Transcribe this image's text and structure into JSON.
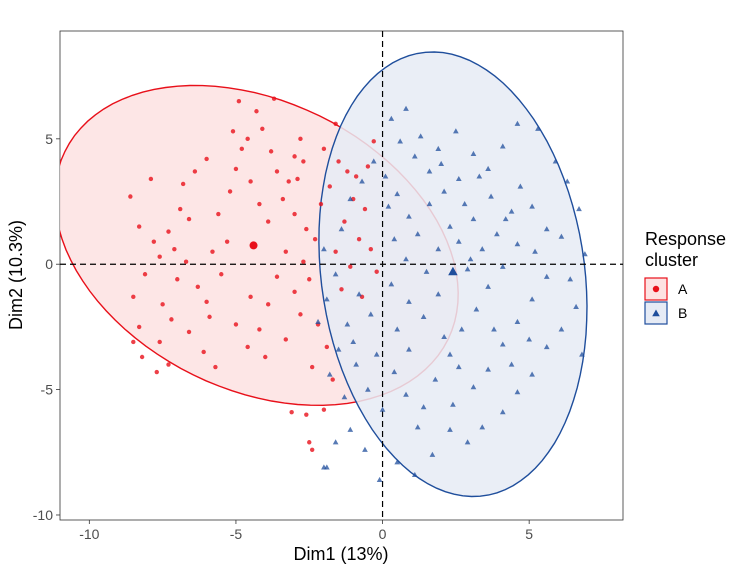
{
  "chart_data": {
    "type": "scatter",
    "xlabel": "Dim1 (13%)",
    "ylabel": "Dim2 (10.3%)",
    "xlim": [
      -11,
      8.2
    ],
    "ylim": [
      -10.2,
      9.3
    ],
    "xticks": [
      -10,
      -5,
      0,
      5
    ],
    "yticks": [
      -10,
      -5,
      0,
      5
    ],
    "xtick_labels": [
      "-10",
      "-5",
      "0",
      "5"
    ],
    "ytick_labels": [
      "-10",
      "-5",
      "0",
      "5"
    ],
    "reference_lines": {
      "x": 0,
      "y": 0,
      "style": "dashed"
    },
    "grid": false,
    "legend": {
      "title_lines": [
        "Response",
        "cluster"
      ],
      "position": "right"
    },
    "series": [
      {
        "name": "A",
        "marker": "circle",
        "color": "#E8101A",
        "fill": "#FDE2E2",
        "centroid": [
          -4.4,
          0.75
        ],
        "ellipse": {
          "center": [
            -4.3,
            0.75
          ],
          "rx": 5.5,
          "ry": 7.6,
          "rotation_deg": 52
        },
        "points": [
          [
            -8.6,
            2.7
          ],
          [
            -7.9,
            3.4
          ],
          [
            -8.3,
            1.5
          ],
          [
            -7.6,
            0.3
          ],
          [
            -8.1,
            -0.4
          ],
          [
            -8.5,
            -1.3
          ],
          [
            -8.3,
            -2.5
          ],
          [
            -8.5,
            -3.1
          ],
          [
            -8.2,
            -3.7
          ],
          [
            -7.7,
            -4.3
          ],
          [
            -7.3,
            -4.0
          ],
          [
            -7.6,
            -3.1
          ],
          [
            -7.2,
            -2.2
          ],
          [
            -7.5,
            -1.6
          ],
          [
            -7.0,
            -0.6
          ],
          [
            -7.1,
            0.6
          ],
          [
            -7.3,
            1.3
          ],
          [
            -6.9,
            2.2
          ],
          [
            -6.8,
            3.2
          ],
          [
            -6.6,
            1.8
          ],
          [
            -6.7,
            0.1
          ],
          [
            -6.3,
            -0.9
          ],
          [
            -6.6,
            -2.7
          ],
          [
            -6.1,
            -3.5
          ],
          [
            -5.7,
            -4.1
          ],
          [
            -5.9,
            -2.1
          ],
          [
            -5.5,
            -0.4
          ],
          [
            -5.3,
            0.9
          ],
          [
            -5.6,
            2.0
          ],
          [
            -5.2,
            2.9
          ],
          [
            -5.0,
            3.8
          ],
          [
            -4.8,
            4.6
          ],
          [
            -5.1,
            5.3
          ],
          [
            -4.6,
            5.0
          ],
          [
            -4.9,
            6.5
          ],
          [
            -4.3,
            6.1
          ],
          [
            -3.7,
            6.6
          ],
          [
            -4.1,
            5.4
          ],
          [
            -3.8,
            4.5
          ],
          [
            -3.6,
            3.7
          ],
          [
            -4.5,
            3.3
          ],
          [
            -4.2,
            2.4
          ],
          [
            -3.9,
            1.7
          ],
          [
            -3.4,
            2.6
          ],
          [
            -3.2,
            3.3
          ],
          [
            -3.0,
            4.3
          ],
          [
            -2.8,
            5.0
          ],
          [
            -2.7,
            4.1
          ],
          [
            -2.9,
            3.4
          ],
          [
            -3.0,
            2.0
          ],
          [
            -2.6,
            1.4
          ],
          [
            -3.3,
            0.5
          ],
          [
            -3.6,
            -0.5
          ],
          [
            -3.9,
            -1.6
          ],
          [
            -4.2,
            -2.6
          ],
          [
            -4.6,
            -3.3
          ],
          [
            -4.0,
            -3.7
          ],
          [
            -3.3,
            -3.0
          ],
          [
            -2.8,
            -2.0
          ],
          [
            -3.0,
            -1.1
          ],
          [
            -2.5,
            -0.6
          ],
          [
            -2.7,
            0.1
          ],
          [
            -2.3,
            1.0
          ],
          [
            -2.1,
            2.4
          ],
          [
            -1.8,
            3.1
          ],
          [
            -1.5,
            4.1
          ],
          [
            -2.0,
            4.6
          ],
          [
            -1.6,
            5.6
          ],
          [
            -1.2,
            3.7
          ],
          [
            -1.0,
            2.6
          ],
          [
            -1.3,
            1.7
          ],
          [
            -1.6,
            0.5
          ],
          [
            -1.1,
            -0.1
          ],
          [
            -1.4,
            -1.0
          ],
          [
            -2.2,
            -2.4
          ],
          [
            -1.9,
            -3.3
          ],
          [
            -2.4,
            -4.1
          ],
          [
            -1.7,
            -4.6
          ],
          [
            -2.0,
            -5.8
          ],
          [
            -2.6,
            -6.0
          ],
          [
            -3.1,
            -5.9
          ],
          [
            -2.5,
            -7.1
          ],
          [
            -2.4,
            -7.4
          ],
          [
            -0.9,
            3.5
          ],
          [
            -0.5,
            3.9
          ],
          [
            -0.3,
            4.9
          ],
          [
            -0.6,
            2.2
          ],
          [
            -0.8,
            1.0
          ],
          [
            -0.4,
            0.6
          ],
          [
            -0.2,
            -0.3
          ],
          [
            -0.7,
            -1.3
          ],
          [
            -6.0,
            4.2
          ],
          [
            -6.4,
            3.7
          ],
          [
            -5.8,
            0.5
          ],
          [
            -7.8,
            0.9
          ],
          [
            -6.0,
            -1.5
          ],
          [
            -5.0,
            -2.4
          ],
          [
            -4.5,
            -1.3
          ],
          [
            -4.4,
            0.75
          ]
        ]
      },
      {
        "name": "B",
        "marker": "triangle",
        "color": "#1F4E9C",
        "fill": "#E6EBF5",
        "centroid": [
          2.4,
          -0.3
        ],
        "ellipse": {
          "center": [
            2.4,
            -0.4
          ],
          "rx": 4.5,
          "ry": 8.9,
          "rotation_deg": 6
        },
        "points": [
          [
            0.3,
            5.8
          ],
          [
            0.8,
            6.2
          ],
          [
            1.3,
            5.1
          ],
          [
            1.9,
            4.6
          ],
          [
            2.5,
            5.3
          ],
          [
            3.1,
            4.4
          ],
          [
            3.6,
            3.8
          ],
          [
            4.1,
            4.7
          ],
          [
            4.6,
            5.6
          ],
          [
            5.3,
            5.4
          ],
          [
            5.9,
            4.1
          ],
          [
            6.3,
            3.3
          ],
          [
            6.7,
            2.2
          ],
          [
            6.1,
            1.1
          ],
          [
            6.9,
            0.4
          ],
          [
            6.4,
            -0.6
          ],
          [
            6.6,
            -1.7
          ],
          [
            6.1,
            -2.6
          ],
          [
            5.6,
            -3.3
          ],
          [
            6.8,
            -3.6
          ],
          [
            5.1,
            -4.4
          ],
          [
            4.6,
            -5.1
          ],
          [
            4.1,
            -5.9
          ],
          [
            3.4,
            -6.5
          ],
          [
            2.9,
            -7.1
          ],
          [
            2.3,
            -6.6
          ],
          [
            1.7,
            -7.6
          ],
          [
            1.1,
            -8.4
          ],
          [
            0.5,
            -7.9
          ],
          [
            -0.1,
            -8.6
          ],
          [
            -0.6,
            -7.4
          ],
          [
            -1.1,
            -6.6
          ],
          [
            -1.6,
            -7.1
          ],
          [
            -1.9,
            -8.1
          ],
          [
            -1.3,
            -5.3
          ],
          [
            -1.8,
            -4.4
          ],
          [
            -1.5,
            -3.4
          ],
          [
            -2.2,
            -2.3
          ],
          [
            -1.9,
            -1.4
          ],
          [
            -1.6,
            -0.4
          ],
          [
            -2.0,
            0.6
          ],
          [
            -1.4,
            1.4
          ],
          [
            -1.1,
            2.6
          ],
          [
            -0.7,
            3.3
          ],
          [
            -0.3,
            4.1
          ],
          [
            0.1,
            3.5
          ],
          [
            0.5,
            2.8
          ],
          [
            0.9,
            1.9
          ],
          [
            0.4,
            1.0
          ],
          [
            0.8,
            0.2
          ],
          [
            0.3,
            -0.8
          ],
          [
            0.9,
            -1.5
          ],
          [
            0.5,
            -2.6
          ],
          [
            0.9,
            -3.4
          ],
          [
            0.4,
            -4.3
          ],
          [
            0.8,
            -5.2
          ],
          [
            1.4,
            -5.7
          ],
          [
            1.8,
            -4.6
          ],
          [
            2.3,
            -3.6
          ],
          [
            2.7,
            -2.6
          ],
          [
            3.2,
            -1.8
          ],
          [
            3.6,
            -0.9
          ],
          [
            4.1,
            -0.1
          ],
          [
            4.6,
            0.8
          ],
          [
            4.2,
            1.8
          ],
          [
            3.7,
            2.7
          ],
          [
            3.3,
            3.5
          ],
          [
            2.8,
            2.4
          ],
          [
            2.3,
            1.5
          ],
          [
            1.9,
            0.6
          ],
          [
            1.5,
            -0.3
          ],
          [
            1.9,
            -1.2
          ],
          [
            1.4,
            -2.1
          ],
          [
            2.1,
            -2.9
          ],
          [
            2.6,
            -4.1
          ],
          [
            3.1,
            -4.9
          ],
          [
            3.6,
            -4.2
          ],
          [
            4.1,
            -3.2
          ],
          [
            4.6,
            -2.3
          ],
          [
            5.1,
            -1.4
          ],
          [
            5.6,
            -0.5
          ],
          [
            5.2,
            0.5
          ],
          [
            5.6,
            1.4
          ],
          [
            5.1,
            2.3
          ],
          [
            4.7,
            3.1
          ],
          [
            4.4,
            2.1
          ],
          [
            3.9,
            1.2
          ],
          [
            3.4,
            0.6
          ],
          [
            2.9,
            -0.2
          ],
          [
            2.6,
            0.9
          ],
          [
            3.1,
            1.8
          ],
          [
            2.1,
            2.9
          ],
          [
            1.6,
            3.7
          ],
          [
            1.1,
            4.3
          ],
          [
            0.6,
            4.9
          ],
          [
            0.2,
            2.3
          ],
          [
            1.2,
            1.2
          ],
          [
            1.6,
            2.4
          ],
          [
            2.0,
            4.0
          ],
          [
            2.6,
            3.4
          ],
          [
            3.0,
            0.2
          ],
          [
            3.8,
            -2.6
          ],
          [
            4.4,
            -4.0
          ],
          [
            5.0,
            -3.0
          ],
          [
            2.4,
            -5.6
          ],
          [
            1.2,
            -6.5
          ],
          [
            0.0,
            -5.8
          ],
          [
            -0.5,
            -5.0
          ],
          [
            -0.9,
            -4.0
          ],
          [
            -0.4,
            -2.0
          ],
          [
            -0.8,
            -1.2
          ],
          [
            -1.2,
            -2.4
          ],
          [
            -1.0,
            -3.1
          ],
          [
            -0.2,
            -3.6
          ],
          [
            -2.0,
            -8.1
          ],
          [
            2.4,
            -0.3
          ]
        ]
      }
    ]
  }
}
